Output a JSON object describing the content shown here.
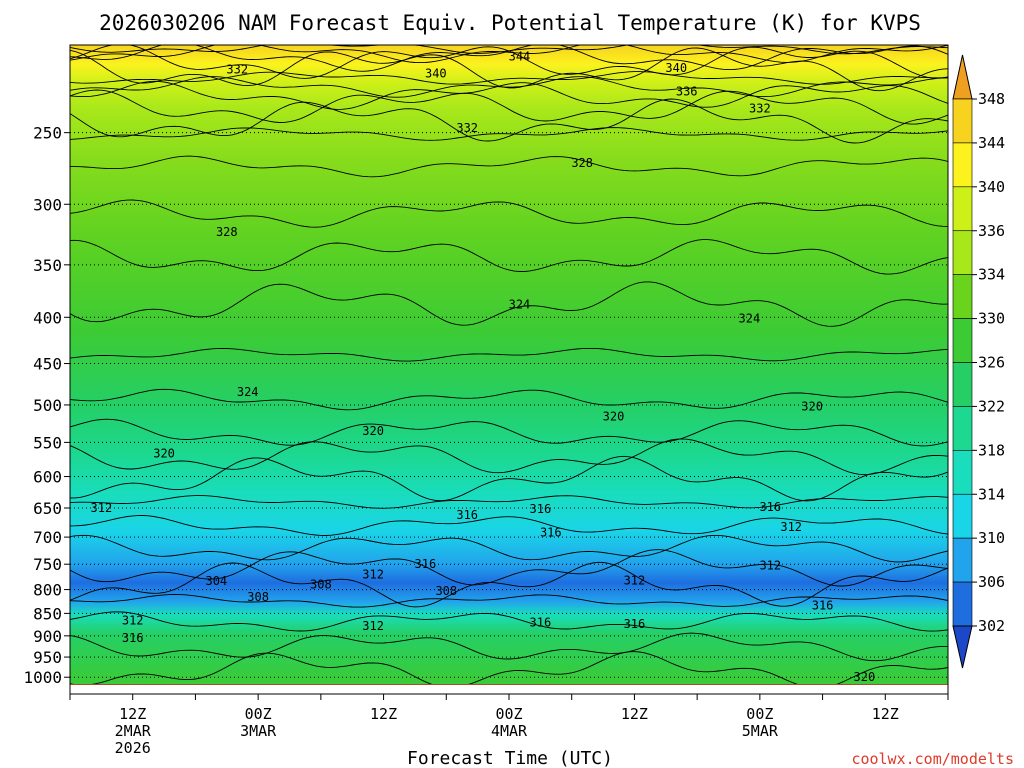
{
  "chart_data": {
    "type": "heatmap",
    "title": "2026030206 NAM Forecast Equiv. Potential Temperature (K) for KVPS",
    "xlabel": "Forecast Time (UTC)",
    "ylabel": "",
    "y_axis": {
      "scale": "log-pressure",
      "unit": "hPa",
      "range": [
        1020,
        200
      ],
      "ticks": [
        "250",
        "300",
        "350",
        "400",
        "450",
        "500",
        "550",
        "600",
        "650",
        "700",
        "750",
        "800",
        "850",
        "900",
        "950",
        "1000"
      ]
    },
    "x_axis": {
      "range_hours": [
        0,
        84
      ],
      "ticks": [
        {
          "hour": 6,
          "lines": [
            "12Z",
            "2MAR",
            "2026"
          ]
        },
        {
          "hour": 18,
          "lines": [
            "00Z",
            "3MAR"
          ]
        },
        {
          "hour": 30,
          "lines": [
            "12Z"
          ]
        },
        {
          "hour": 42,
          "lines": [
            "00Z",
            "4MAR"
          ]
        },
        {
          "hour": 54,
          "lines": [
            "12Z"
          ]
        },
        {
          "hour": 66,
          "lines": [
            "00Z",
            "5MAR"
          ]
        },
        {
          "hour": 78,
          "lines": [
            "12Z"
          ]
        }
      ]
    },
    "colorbar": {
      "unit": "K",
      "levels": [
        "348",
        "344",
        "340",
        "336",
        "334",
        "330",
        "326",
        "322",
        "318",
        "314",
        "310",
        "306",
        "302"
      ],
      "colors": [
        "#f0a020",
        "#f7d21e",
        "#fbf21e",
        "#cdf018",
        "#a8e81a",
        "#6ad41d",
        "#3ccb35",
        "#25cf65",
        "#1cd890",
        "#19ddbc",
        "#1ad4e8",
        "#22a4ec",
        "#1e6ee0",
        "#1a48c8"
      ]
    },
    "contour_interval_K": 2,
    "contour_labels": [
      {
        "value": "344",
        "hour": 43,
        "hpa": 206
      },
      {
        "value": "340",
        "hour": 35,
        "hpa": 215
      },
      {
        "value": "340",
        "hour": 58,
        "hpa": 212
      },
      {
        "value": "336",
        "hour": 59,
        "hpa": 225
      },
      {
        "value": "332",
        "hour": 16,
        "hpa": 213
      },
      {
        "value": "332",
        "hour": 38,
        "hpa": 247
      },
      {
        "value": "332",
        "hour": 66,
        "hpa": 235
      },
      {
        "value": "328",
        "hour": 49,
        "hpa": 270
      },
      {
        "value": "328",
        "hour": 15,
        "hpa": 322
      },
      {
        "value": "324",
        "hour": 43,
        "hpa": 387
      },
      {
        "value": "324",
        "hour": 65,
        "hpa": 401
      },
      {
        "value": "324",
        "hour": 17,
        "hpa": 484
      },
      {
        "value": "320",
        "hour": 29,
        "hpa": 534
      },
      {
        "value": "320",
        "hour": 52,
        "hpa": 515
      },
      {
        "value": "320",
        "hour": 71,
        "hpa": 502
      },
      {
        "value": "320",
        "hour": 9,
        "hpa": 566
      },
      {
        "value": "316",
        "hour": 45,
        "hpa": 652
      },
      {
        "value": "316",
        "hour": 67,
        "hpa": 648
      },
      {
        "value": "316",
        "hour": 46,
        "hpa": 692
      },
      {
        "value": "316",
        "hour": 34,
        "hpa": 750
      },
      {
        "value": "316",
        "hour": 72,
        "hpa": 833
      },
      {
        "value": "316",
        "hour": 45,
        "hpa": 870
      },
      {
        "value": "316",
        "hour": 54,
        "hpa": 873
      },
      {
        "value": "316",
        "hour": 6,
        "hpa": 905
      },
      {
        "value": "316",
        "hour": 38,
        "hpa": 662
      },
      {
        "value": "312",
        "hour": 3,
        "hpa": 650
      },
      {
        "value": "312",
        "hour": 69,
        "hpa": 682
      },
      {
        "value": "312",
        "hour": 29,
        "hpa": 770
      },
      {
        "value": "312",
        "hour": 54,
        "hpa": 782
      },
      {
        "value": "312",
        "hour": 67,
        "hpa": 752
      },
      {
        "value": "312",
        "hour": 29,
        "hpa": 878
      },
      {
        "value": "312",
        "hour": 6,
        "hpa": 865
      },
      {
        "value": "308",
        "hour": 24,
        "hpa": 790
      },
      {
        "value": "308",
        "hour": 36,
        "hpa": 803
      },
      {
        "value": "308",
        "hour": 18,
        "hpa": 815
      },
      {
        "value": "304",
        "hour": 14,
        "hpa": 783
      },
      {
        "value": "320",
        "hour": 76,
        "hpa": 1000
      }
    ],
    "field_bands": [
      {
        "range_K": "344-348",
        "hpa_top": 200,
        "hpa_bottom": 210
      },
      {
        "range_K": "336-344",
        "hpa_top": 210,
        "hpa_bottom": 230
      },
      {
        "range_K": "332-336",
        "hpa_top": 230,
        "hpa_bottom": 255
      },
      {
        "range_K": "326-332",
        "hpa_top": 255,
        "hpa_bottom": 360
      },
      {
        "range_K": "322-326",
        "hpa_top": 360,
        "hpa_bottom": 520
      },
      {
        "range_K": "318-322",
        "hpa_top": 520,
        "hpa_bottom": 620
      },
      {
        "range_K": "310-318",
        "hpa_top": 620,
        "hpa_bottom": 740
      },
      {
        "range_K": "304-310",
        "hpa_top": 740,
        "hpa_bottom": 840
      },
      {
        "range_K": "314-322",
        "hpa_top": 840,
        "hpa_bottom": 1010
      }
    ]
  },
  "watermark": "coolwx.com/modelts",
  "colors": {
    "ground": "#a0522d",
    "grid": "#000000",
    "background": "#ffffff"
  }
}
